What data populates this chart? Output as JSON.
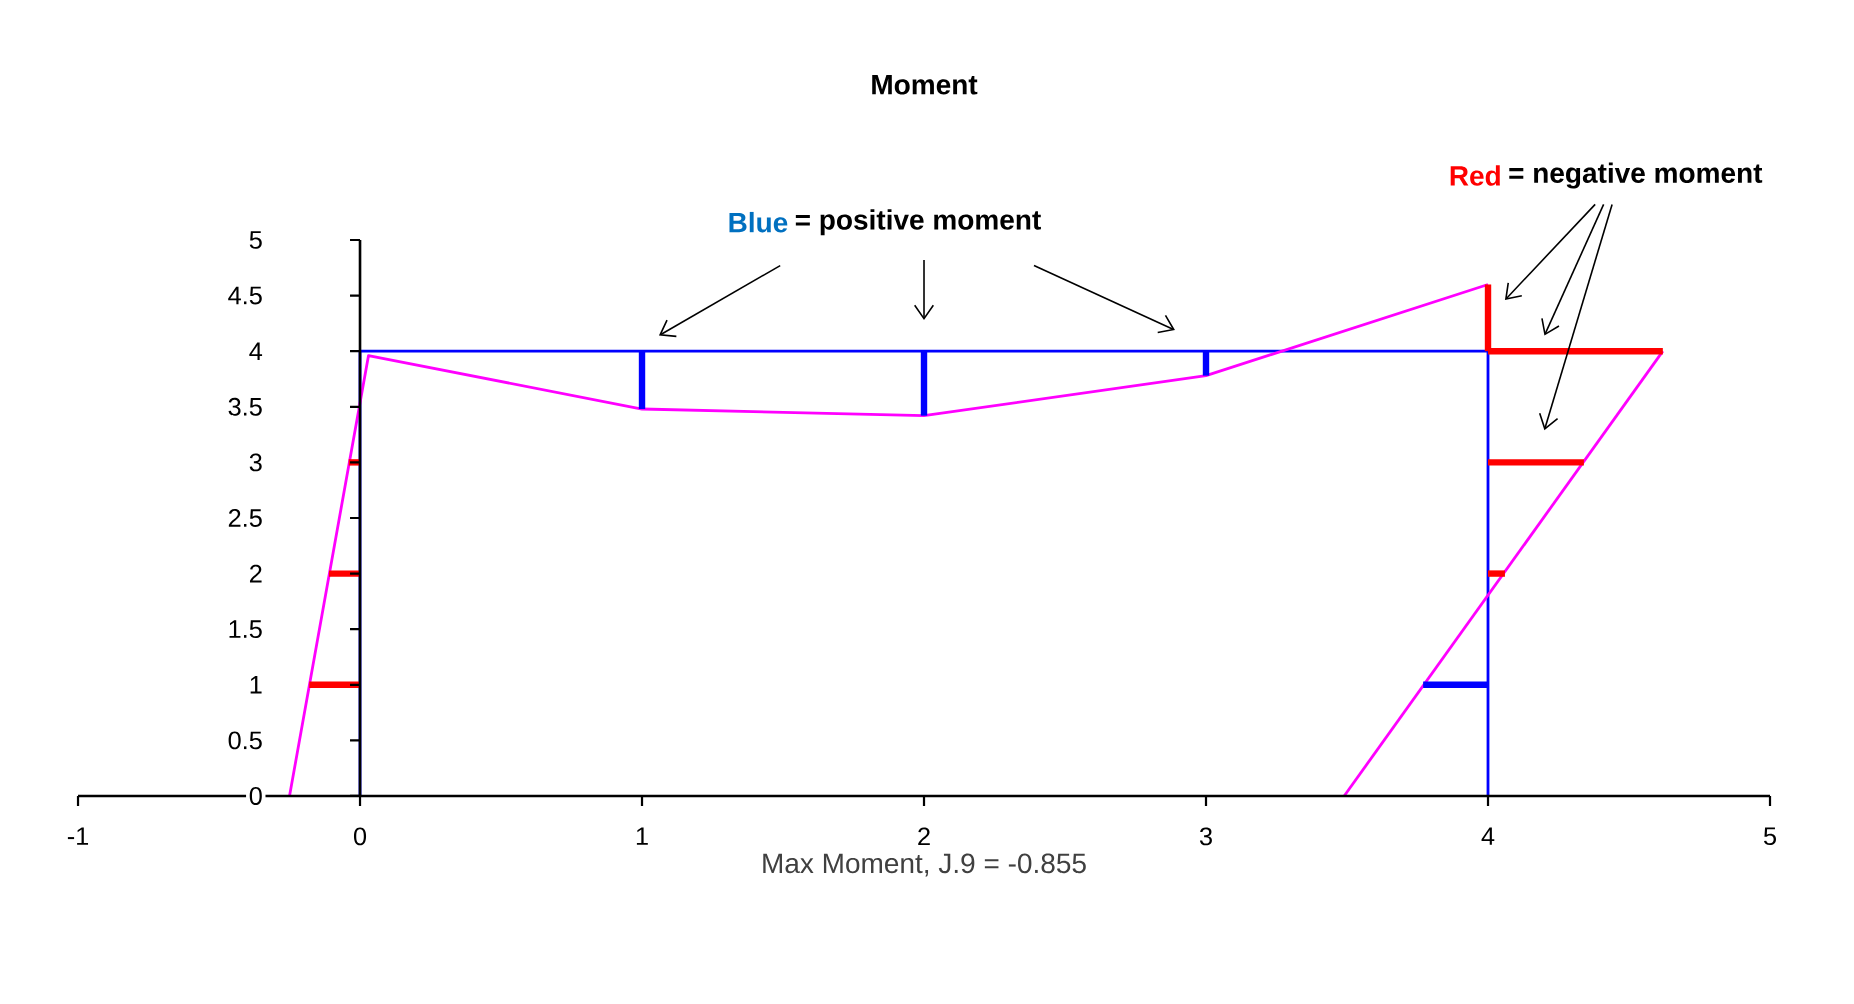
{
  "chart_data": {
    "type": "line",
    "title": "Moment",
    "xlabel": "Max Moment, J.9 = -0.855",
    "xlim": [
      -1,
      5
    ],
    "ylim": [
      0,
      5
    ],
    "xticks": [
      -1,
      0,
      1,
      2,
      3,
      4,
      5
    ],
    "yticks": [
      0,
      0.5,
      1,
      1.5,
      2,
      2.5,
      3,
      3.5,
      4,
      4.5,
      5
    ],
    "line_style": "solid",
    "annotations": [
      "Blue",
      "= positive moment",
      "Red",
      "= negative moment"
    ],
    "series": [
      {
        "color": "#0000ff",
        "x": [
          0,
          0,
          4,
          4
        ],
        "values": [
          0,
          4,
          4,
          0
        ]
      },
      {
        "color": "#ff00ff",
        "x": [
          -0.25,
          0.03,
          1,
          2,
          3,
          4
        ],
        "values": [
          0,
          3.96,
          3.48,
          3.42,
          3.78,
          4.6
        ]
      },
      {
        "color": "#ff00ff",
        "x": [
          4.62,
          3.49
        ],
        "values": [
          4,
          0
        ]
      },
      {
        "color": "#0000ff",
        "x": [
          1,
          1
        ],
        "values": [
          3.48,
          4
        ]
      },
      {
        "color": "#0000ff",
        "x": [
          2,
          2
        ],
        "values": [
          3.42,
          4
        ]
      },
      {
        "color": "#0000ff",
        "x": [
          3,
          3
        ],
        "values": [
          3.78,
          4
        ]
      },
      {
        "color": "#ff0000",
        "x": [
          -0.18,
          0
        ],
        "values": [
          1,
          1
        ]
      },
      {
        "color": "#ff0000",
        "x": [
          -0.11,
          0
        ],
        "values": [
          2,
          2
        ]
      },
      {
        "color": "#ff0000",
        "x": [
          -0.04,
          0
        ],
        "values": [
          3,
          3
        ]
      },
      {
        "color": "#ff0000",
        "x": [
          4,
          4
        ],
        "values": [
          4,
          4.6
        ]
      },
      {
        "color": "#ff0000",
        "x": [
          4,
          4.62
        ],
        "values": [
          4,
          4
        ]
      },
      {
        "color": "#ff0000",
        "x": [
          4,
          4.34
        ],
        "values": [
          3,
          3
        ]
      },
      {
        "color": "#ff0000",
        "x": [
          4,
          4.06
        ],
        "values": [
          2,
          2
        ]
      },
      {
        "color": "#0000ff",
        "x": [
          3.77,
          4
        ],
        "values": [
          1,
          1
        ]
      }
    ]
  }
}
